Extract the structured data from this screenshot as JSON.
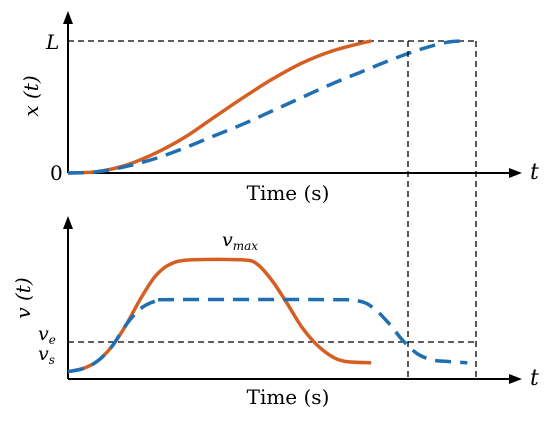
{
  "colors": {
    "solid": "#d55e22",
    "dashed": "#1f6fb2",
    "axis": "#000000"
  },
  "chart_data": [
    {
      "type": "line",
      "xlabel": "Time (s)",
      "ylabel": "x (t)",
      "x_arrow_label": "t",
      "ytick_labels": [
        "L",
        "0"
      ],
      "xlim": [
        0,
        1.4
      ],
      "ylim": [
        0,
        1
      ],
      "series": [
        {
          "style": "solid",
          "points": [
            [
              0,
              0
            ],
            [
              0.1,
              0.01
            ],
            [
              0.2,
              0.06
            ],
            [
              0.3,
              0.15
            ],
            [
              0.4,
              0.27
            ],
            [
              0.5,
              0.42
            ],
            [
              0.6,
              0.57
            ],
            [
              0.7,
              0.71
            ],
            [
              0.8,
              0.83
            ],
            [
              0.9,
              0.92
            ],
            [
              1.0,
              0.98
            ],
            [
              1.04,
              1.0
            ]
          ]
        },
        {
          "style": "dashed",
          "points": [
            [
              0,
              0
            ],
            [
              0.1,
              0.01
            ],
            [
              0.2,
              0.05
            ],
            [
              0.3,
              0.11
            ],
            [
              0.4,
              0.19
            ],
            [
              0.5,
              0.28
            ],
            [
              0.6,
              0.37
            ],
            [
              0.7,
              0.47
            ],
            [
              0.8,
              0.57
            ],
            [
              0.9,
              0.67
            ],
            [
              1.0,
              0.76
            ],
            [
              1.1,
              0.85
            ],
            [
              1.2,
              0.93
            ],
            [
              1.3,
              0.99
            ],
            [
              1.37,
              1.0
            ]
          ]
        }
      ]
    },
    {
      "type": "line",
      "xlabel": "Time (s)",
      "ylabel": "v (t)",
      "x_arrow_label": "t",
      "ytick_labels": [
        "v_e",
        "v_s"
      ],
      "annotation": "v_max",
      "xlim": [
        0,
        1.4
      ],
      "ylim": [
        0,
        1
      ],
      "series": [
        {
          "style": "solid",
          "points": [
            [
              0,
              0.05
            ],
            [
              0.05,
              0.07
            ],
            [
              0.1,
              0.12
            ],
            [
              0.15,
              0.22
            ],
            [
              0.2,
              0.37
            ],
            [
              0.25,
              0.55
            ],
            [
              0.3,
              0.7
            ],
            [
              0.35,
              0.78
            ],
            [
              0.42,
              0.81
            ],
            [
              0.6,
              0.81
            ],
            [
              0.65,
              0.78
            ],
            [
              0.7,
              0.67
            ],
            [
              0.75,
              0.52
            ],
            [
              0.8,
              0.36
            ],
            [
              0.85,
              0.24
            ],
            [
              0.9,
              0.16
            ],
            [
              0.95,
              0.12
            ],
            [
              1.04,
              0.11
            ]
          ]
        },
        {
          "style": "dashed",
          "points": [
            [
              0,
              0.05
            ],
            [
              0.05,
              0.07
            ],
            [
              0.1,
              0.12
            ],
            [
              0.15,
              0.22
            ],
            [
              0.2,
              0.37
            ],
            [
              0.25,
              0.48
            ],
            [
              0.3,
              0.53
            ],
            [
              0.35,
              0.54
            ],
            [
              0.9,
              0.54
            ],
            [
              1.0,
              0.53
            ],
            [
              1.05,
              0.48
            ],
            [
              1.1,
              0.38
            ],
            [
              1.15,
              0.26
            ],
            [
              1.2,
              0.17
            ],
            [
              1.25,
              0.13
            ],
            [
              1.3,
              0.12
            ],
            [
              1.37,
              0.11
            ]
          ]
        }
      ]
    }
  ]
}
